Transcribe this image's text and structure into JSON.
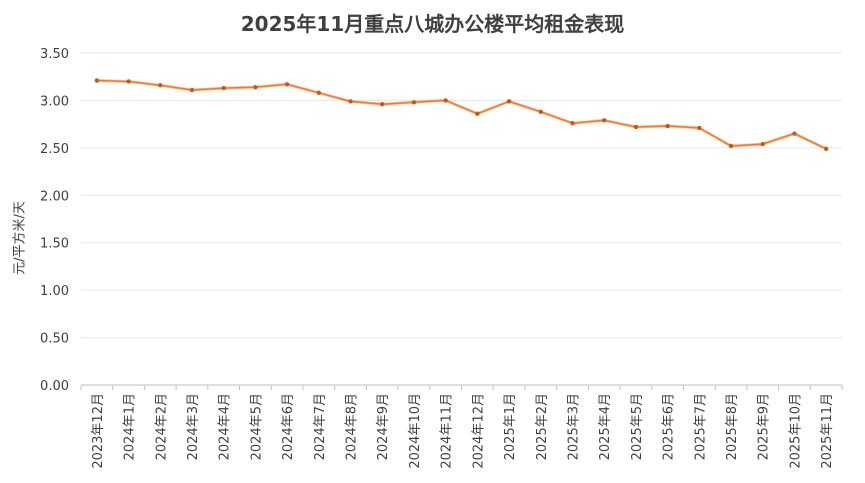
{
  "chart_data": {
    "type": "line",
    "title": "2025年11月重点八城办公楼平均租金表现",
    "xlabel": "",
    "ylabel": "元/平方米/天",
    "ylim": [
      0,
      3.5
    ],
    "yticks": [
      "0.00",
      "0.50",
      "1.00",
      "1.50",
      "2.00",
      "2.50",
      "3.00",
      "3.50"
    ],
    "grid": true,
    "legend": "none",
    "categories": [
      "2023年12月",
      "2024年1月",
      "2024年2月",
      "2024年3月",
      "2024年4月",
      "2024年5月",
      "2024年6月",
      "2024年7月",
      "2024年8月",
      "2024年9月",
      "2024年10月",
      "2024年11月",
      "2024年12月",
      "2025年1月",
      "2025年2月",
      "2025年3月",
      "2025年4月",
      "2025年5月",
      "2025年6月",
      "2025年7月",
      "2025年8月",
      "2025年9月",
      "2025年10月",
      "2025年11月"
    ],
    "series": [
      {
        "values": [
          3.21,
          3.2,
          3.16,
          3.11,
          3.13,
          3.14,
          3.17,
          3.08,
          2.99,
          2.96,
          2.98,
          3.0,
          2.86,
          2.99,
          2.88,
          2.76,
          2.79,
          2.72,
          2.73,
          2.71,
          2.52,
          2.54,
          2.65,
          2.49
        ],
        "color": "#ED7D31"
      }
    ]
  }
}
